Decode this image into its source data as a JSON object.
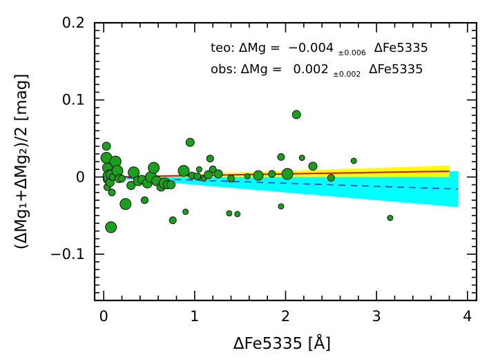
{
  "chart_data": {
    "type": "scatter",
    "xlabel": "ΔFe5335   [Å]",
    "ylabel": "(ΔMg₁+ΔMg₂)/2   [mag]",
    "xlim": [
      -0.1,
      4.1
    ],
    "ylim": [
      -0.16,
      0.2
    ],
    "x_ticks": [
      0,
      1,
      2,
      3,
      4
    ],
    "y_ticks": [
      -0.1,
      0,
      0.1,
      0.2
    ],
    "x_tick_labels": [
      "0",
      "1",
      "2",
      "3",
      "4"
    ],
    "y_tick_labels": [
      "−0.1",
      "0",
      "0.1",
      "0.2"
    ],
    "grid": false,
    "annotations": {
      "teo": {
        "prefix": "teo: ΔMg =",
        "value": "−0.004",
        "error": "±0.006",
        "suffix": "ΔFe5335"
      },
      "obs": {
        "prefix": "obs: ΔMg =",
        "value": "0.002",
        "error": "±0.002",
        "suffix": "ΔFe5335"
      }
    },
    "fits": [
      {
        "id": "obs",
        "slope": 0.002,
        "slope_err": 0.002,
        "x_range": [
          0.0,
          3.8
        ],
        "line_color": "#d0102a",
        "band_color": "#ffff00",
        "line_style": "solid"
      },
      {
        "id": "teo",
        "slope": -0.004,
        "slope_err": 0.006,
        "x_range": [
          0.0,
          3.9
        ],
        "line_color": "#3333dd",
        "band_color": "#00ffff",
        "line_style": "dashed"
      }
    ],
    "point_color": "#1aa01a",
    "points": [
      {
        "x": 0.03,
        "y": 0.04,
        "s": 6
      },
      {
        "x": 0.03,
        "y": 0.025,
        "s": 8
      },
      {
        "x": 0.04,
        "y": 0.012,
        "s": 7
      },
      {
        "x": 0.04,
        "y": -0.003,
        "s": 6
      },
      {
        "x": 0.04,
        "y": -0.013,
        "s": 5
      },
      {
        "x": 0.06,
        "y": 0.001,
        "s": 9
      },
      {
        "x": 0.07,
        "y": -0.007,
        "s": 6
      },
      {
        "x": 0.08,
        "y": 0.003,
        "s": 7
      },
      {
        "x": 0.09,
        "y": -0.02,
        "s": 5
      },
      {
        "x": 0.1,
        "y": 0.0,
        "s": 5
      },
      {
        "x": 0.08,
        "y": -0.065,
        "s": 8
      },
      {
        "x": 0.13,
        "y": 0.02,
        "s": 8
      },
      {
        "x": 0.15,
        "y": 0.008,
        "s": 8
      },
      {
        "x": 0.17,
        "y": -0.002,
        "s": 6
      },
      {
        "x": 0.2,
        "y": -0.002,
        "s": 5
      },
      {
        "x": 0.24,
        "y": -0.035,
        "s": 8
      },
      {
        "x": 0.3,
        "y": -0.011,
        "s": 6
      },
      {
        "x": 0.33,
        "y": 0.006,
        "s": 8
      },
      {
        "x": 0.38,
        "y": -0.005,
        "s": 7
      },
      {
        "x": 0.42,
        "y": -0.003,
        "s": 6
      },
      {
        "x": 0.45,
        "y": -0.03,
        "s": 5
      },
      {
        "x": 0.48,
        "y": -0.008,
        "s": 7
      },
      {
        "x": 0.52,
        "y": 0.0,
        "s": 8
      },
      {
        "x": 0.55,
        "y": 0.012,
        "s": 8
      },
      {
        "x": 0.58,
        "y": -0.005,
        "s": 7
      },
      {
        "x": 0.63,
        "y": -0.013,
        "s": 6
      },
      {
        "x": 0.67,
        "y": -0.008,
        "s": 8
      },
      {
        "x": 0.7,
        "y": -0.01,
        "s": 6
      },
      {
        "x": 0.74,
        "y": -0.01,
        "s": 6
      },
      {
        "x": 0.76,
        "y": -0.056,
        "s": 5
      },
      {
        "x": 0.88,
        "y": 0.008,
        "s": 8
      },
      {
        "x": 0.9,
        "y": -0.045,
        "s": 4
      },
      {
        "x": 0.95,
        "y": 0.045,
        "s": 6
      },
      {
        "x": 0.97,
        "y": 0.002,
        "s": 5
      },
      {
        "x": 1.03,
        "y": 0.001,
        "s": 5
      },
      {
        "x": 1.05,
        "y": 0.01,
        "s": 4
      },
      {
        "x": 1.1,
        "y": -0.002,
        "s": 4
      },
      {
        "x": 1.15,
        "y": 0.003,
        "s": 6
      },
      {
        "x": 1.17,
        "y": 0.024,
        "s": 5
      },
      {
        "x": 1.2,
        "y": 0.01,
        "s": 5
      },
      {
        "x": 1.26,
        "y": 0.004,
        "s": 6
      },
      {
        "x": 1.38,
        "y": -0.047,
        "s": 4
      },
      {
        "x": 1.4,
        "y": -0.002,
        "s": 5
      },
      {
        "x": 1.47,
        "y": -0.048,
        "s": 4
      },
      {
        "x": 1.58,
        "y": 0.001,
        "s": 4
      },
      {
        "x": 1.7,
        "y": 0.002,
        "s": 7
      },
      {
        "x": 1.85,
        "y": 0.004,
        "s": 5
      },
      {
        "x": 1.95,
        "y": 0.026,
        "s": 5
      },
      {
        "x": 1.95,
        "y": -0.038,
        "s": 4
      },
      {
        "x": 2.02,
        "y": 0.004,
        "s": 8
      },
      {
        "x": 2.12,
        "y": 0.081,
        "s": 6
      },
      {
        "x": 2.18,
        "y": 0.025,
        "s": 4
      },
      {
        "x": 2.3,
        "y": 0.014,
        "s": 6
      },
      {
        "x": 2.5,
        "y": -0.001,
        "s": 5
      },
      {
        "x": 2.75,
        "y": 0.021,
        "s": 4
      },
      {
        "x": 3.15,
        "y": -0.053,
        "s": 4
      }
    ]
  }
}
